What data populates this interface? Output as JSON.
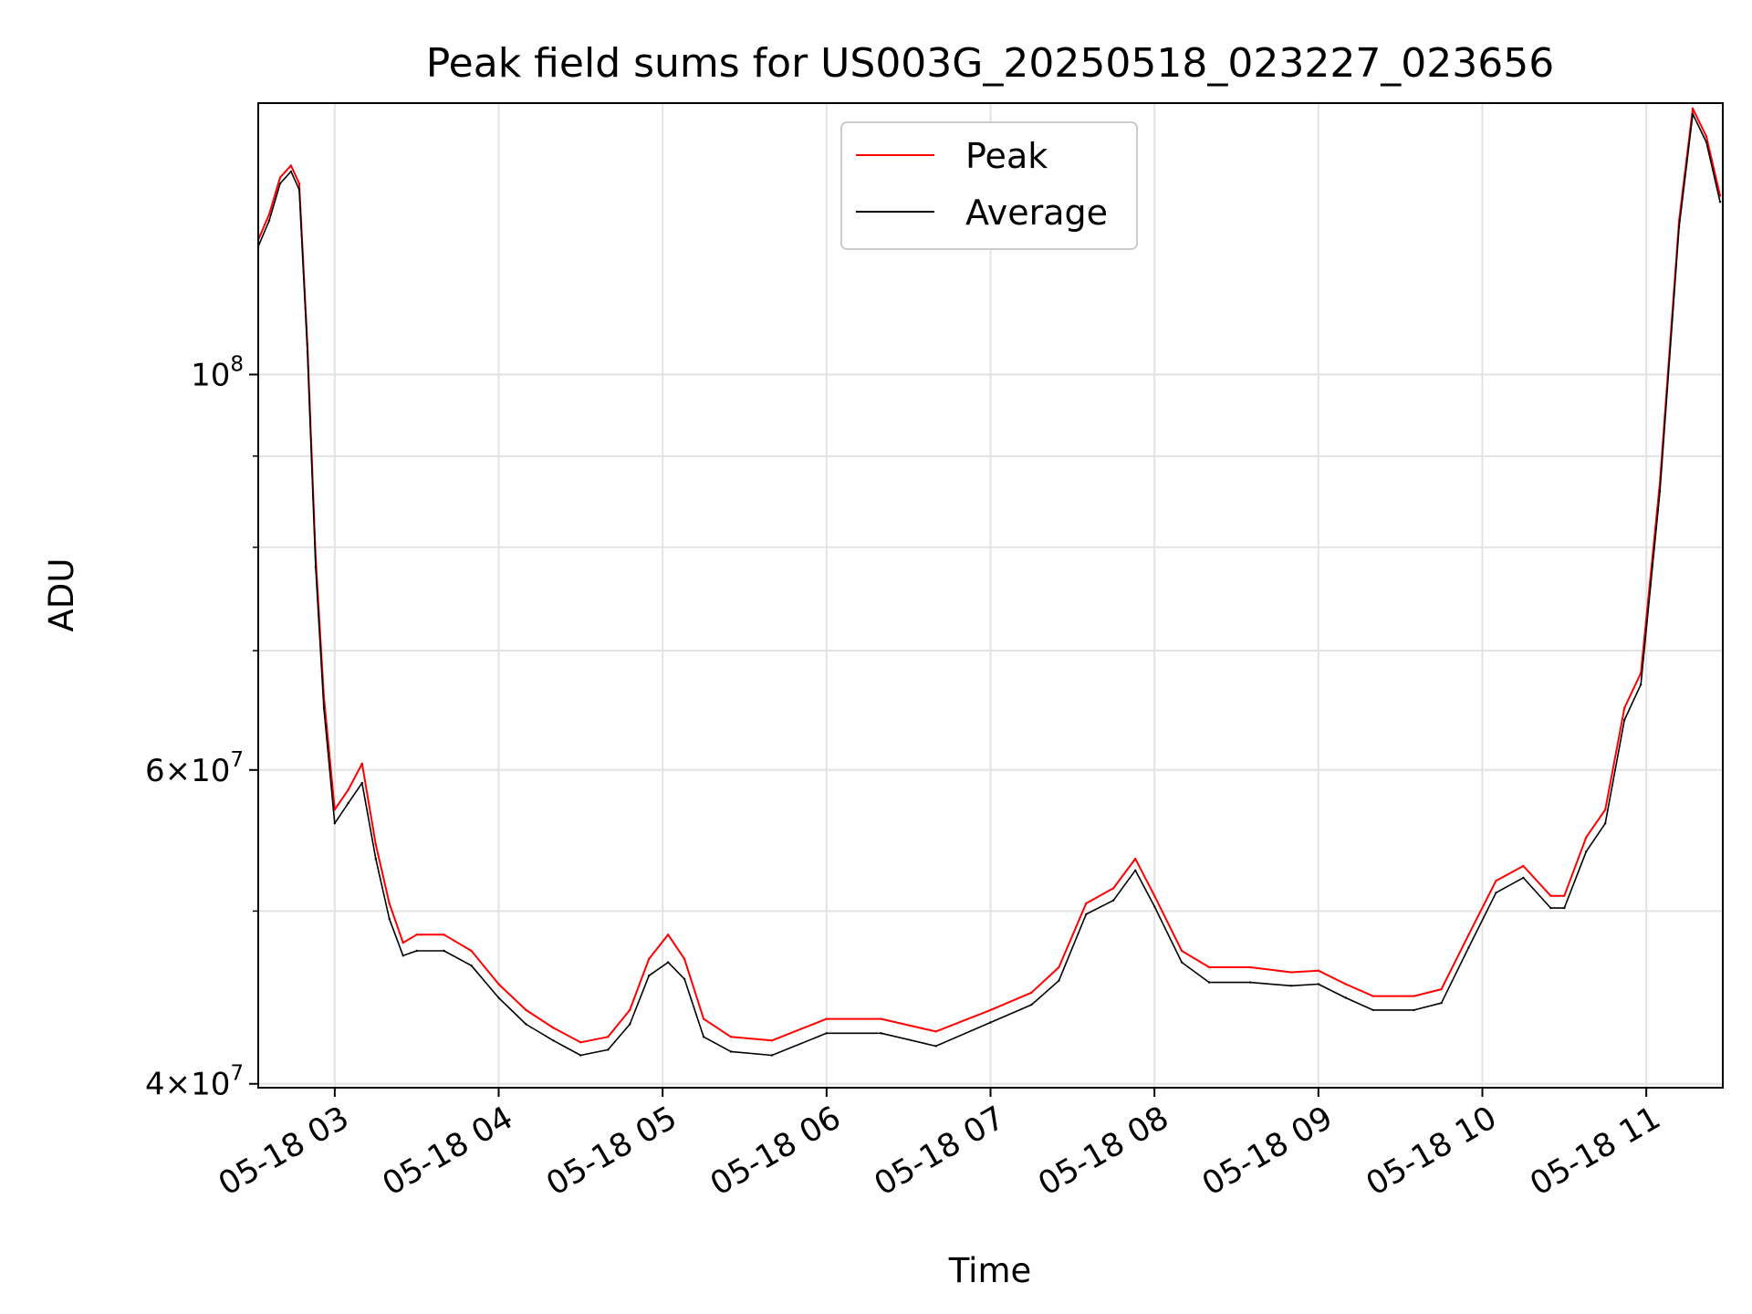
{
  "chart_data": {
    "type": "line",
    "title": "Peak field sums for US003G_20250518_023227_023656",
    "xlabel": "Time",
    "ylabel": "ADU",
    "x_start": "05-18 02:32",
    "x_end": "05-18 11:28",
    "xlim": [
      "05-18 02:32",
      "05-18 11:28"
    ],
    "x_ticks": [
      "05-18 03",
      "05-18 04",
      "05-18 05",
      "05-18 06",
      "05-18 07",
      "05-18 08",
      "05-18 09",
      "05-18 10",
      "05-18 11"
    ],
    "y_scale": "log",
    "ylim": [
      39800000,
      142000000
    ],
    "y_ticks": [
      {
        "value": 100000000,
        "base": "10",
        "exp": "8",
        "mant": ""
      },
      {
        "value": 60000000,
        "base": "10",
        "exp": "7",
        "mant": "6"
      },
      {
        "value": 40000000,
        "base": "10",
        "exp": "7",
        "mant": "4"
      }
    ],
    "y_minor_ticks": [
      50000000,
      70000000,
      80000000,
      90000000
    ],
    "grid": true,
    "legend": {
      "placement": "top-center"
    },
    "series": [
      {
        "name": "Peak",
        "color": "#ff0000",
        "points": [
          [
            "05-18 02:32",
            119000000
          ],
          [
            "05-18 02:36",
            123000000
          ],
          [
            "05-18 02:40",
            129000000
          ],
          [
            "05-18 02:44",
            131000000
          ],
          [
            "05-18 02:47",
            128000000
          ],
          [
            "05-18 02:50",
            104000000
          ],
          [
            "05-18 02:53",
            79000000
          ],
          [
            "05-18 02:56",
            66000000
          ],
          [
            "05-18 03:00",
            57000000
          ],
          [
            "05-18 03:05",
            58500000
          ],
          [
            "05-18 03:10",
            60500000
          ],
          [
            "05-18 03:15",
            54500000
          ],
          [
            "05-18 03:20",
            50500000
          ],
          [
            "05-18 03:25",
            48000000
          ],
          [
            "05-18 03:30",
            48500000
          ],
          [
            "05-18 03:40",
            48500000
          ],
          [
            "05-18 03:50",
            47500000
          ],
          [
            "05-18 04:00",
            45500000
          ],
          [
            "05-18 04:10",
            44000000
          ],
          [
            "05-18 04:20",
            43000000
          ],
          [
            "05-18 04:30",
            42200000
          ],
          [
            "05-18 04:40",
            42500000
          ],
          [
            "05-18 04:48",
            44000000
          ],
          [
            "05-18 04:55",
            47000000
          ],
          [
            "05-18 05:02",
            48500000
          ],
          [
            "05-18 05:08",
            47000000
          ],
          [
            "05-18 05:15",
            43500000
          ],
          [
            "05-18 05:25",
            42500000
          ],
          [
            "05-18 05:40",
            42300000
          ],
          [
            "05-18 06:00",
            43500000
          ],
          [
            "05-18 06:20",
            43500000
          ],
          [
            "05-18 06:40",
            42800000
          ],
          [
            "05-18 07:00",
            44000000
          ],
          [
            "05-18 07:15",
            45000000
          ],
          [
            "05-18 07:25",
            46500000
          ],
          [
            "05-18 07:35",
            50500000
          ],
          [
            "05-18 07:45",
            51500000
          ],
          [
            "05-18 07:53",
            53500000
          ],
          [
            "05-18 08:00",
            51000000
          ],
          [
            "05-18 08:10",
            47500000
          ],
          [
            "05-18 08:20",
            46500000
          ],
          [
            "05-18 08:35",
            46500000
          ],
          [
            "05-18 08:50",
            46200000
          ],
          [
            "05-18 09:00",
            46300000
          ],
          [
            "05-18 09:10",
            45500000
          ],
          [
            "05-18 09:20",
            44800000
          ],
          [
            "05-18 09:35",
            44800000
          ],
          [
            "05-18 09:45",
            45200000
          ],
          [
            "05-18 09:55",
            48500000
          ],
          [
            "05-18 10:05",
            52000000
          ],
          [
            "05-18 10:15",
            53000000
          ],
          [
            "05-18 10:25",
            51000000
          ],
          [
            "05-18 10:30",
            51000000
          ],
          [
            "05-18 10:38",
            55000000
          ],
          [
            "05-18 10:45",
            57000000
          ],
          [
            "05-18 10:52",
            65000000
          ],
          [
            "05-18 10:58",
            68000000
          ],
          [
            "05-18 11:05",
            87000000
          ],
          [
            "05-18 11:12",
            122000000
          ],
          [
            "05-18 11:17",
            141000000
          ],
          [
            "05-18 11:22",
            136000000
          ],
          [
            "05-18 11:27",
            126000000
          ]
        ]
      },
      {
        "name": "Average",
        "color": "#000000",
        "points": [
          [
            "05-18 02:32",
            118000000
          ],
          [
            "05-18 02:36",
            122000000
          ],
          [
            "05-18 02:40",
            128000000
          ],
          [
            "05-18 02:44",
            130000000
          ],
          [
            "05-18 02:47",
            127000000
          ],
          [
            "05-18 02:50",
            103000000
          ],
          [
            "05-18 02:53",
            78000000
          ],
          [
            "05-18 02:56",
            65000000
          ],
          [
            "05-18 03:00",
            56000000
          ],
          [
            "05-18 03:05",
            57500000
          ],
          [
            "05-18 03:10",
            59000000
          ],
          [
            "05-18 03:15",
            53500000
          ],
          [
            "05-18 03:20",
            49500000
          ],
          [
            "05-18 03:25",
            47200000
          ],
          [
            "05-18 03:30",
            47500000
          ],
          [
            "05-18 03:40",
            47500000
          ],
          [
            "05-18 03:50",
            46600000
          ],
          [
            "05-18 04:00",
            44700000
          ],
          [
            "05-18 04:10",
            43200000
          ],
          [
            "05-18 04:20",
            42300000
          ],
          [
            "05-18 04:30",
            41500000
          ],
          [
            "05-18 04:40",
            41800000
          ],
          [
            "05-18 04:48",
            43200000
          ],
          [
            "05-18 04:55",
            46000000
          ],
          [
            "05-18 05:02",
            46800000
          ],
          [
            "05-18 05:08",
            45800000
          ],
          [
            "05-18 05:15",
            42500000
          ],
          [
            "05-18 05:25",
            41700000
          ],
          [
            "05-18 05:40",
            41500000
          ],
          [
            "05-18 06:00",
            42700000
          ],
          [
            "05-18 06:20",
            42700000
          ],
          [
            "05-18 06:40",
            42000000
          ],
          [
            "05-18 07:00",
            43300000
          ],
          [
            "05-18 07:15",
            44300000
          ],
          [
            "05-18 07:25",
            45700000
          ],
          [
            "05-18 07:35",
            49800000
          ],
          [
            "05-18 07:45",
            50700000
          ],
          [
            "05-18 07:53",
            52700000
          ],
          [
            "05-18 08:00",
            50300000
          ],
          [
            "05-18 08:10",
            46800000
          ],
          [
            "05-18 08:20",
            45600000
          ],
          [
            "05-18 08:35",
            45600000
          ],
          [
            "05-18 08:50",
            45400000
          ],
          [
            "05-18 09:00",
            45500000
          ],
          [
            "05-18 09:10",
            44700000
          ],
          [
            "05-18 09:20",
            44000000
          ],
          [
            "05-18 09:35",
            44000000
          ],
          [
            "05-18 09:45",
            44400000
          ],
          [
            "05-18 09:55",
            47700000
          ],
          [
            "05-18 10:05",
            51200000
          ],
          [
            "05-18 10:15",
            52200000
          ],
          [
            "05-18 10:25",
            50200000
          ],
          [
            "05-18 10:30",
            50200000
          ],
          [
            "05-18 10:38",
            54000000
          ],
          [
            "05-18 10:45",
            56000000
          ],
          [
            "05-18 10:52",
            64000000
          ],
          [
            "05-18 10:58",
            67000000
          ],
          [
            "05-18 11:05",
            86000000
          ],
          [
            "05-18 11:12",
            121000000
          ],
          [
            "05-18 11:17",
            140000000
          ],
          [
            "05-18 11:22",
            135000000
          ],
          [
            "05-18 11:27",
            125000000
          ]
        ]
      }
    ]
  }
}
